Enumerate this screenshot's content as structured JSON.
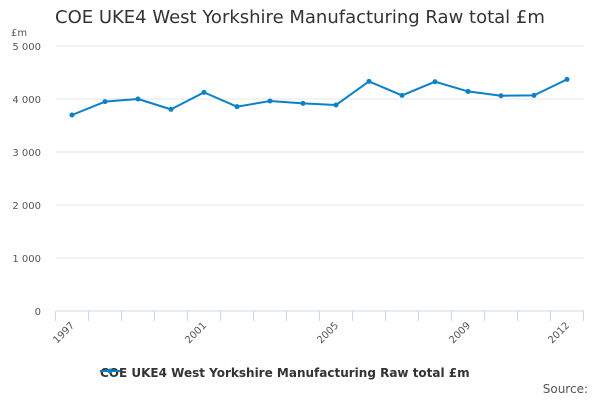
{
  "chart_data": {
    "type": "line",
    "title": "COE UKE4 West Yorkshire Manufacturing Raw total £m",
    "ylabel": "£m",
    "xlabel": "",
    "ylim": [
      0,
      5000
    ],
    "yticks": [
      0,
      1000,
      2000,
      3000,
      4000,
      5000
    ],
    "ytick_labels": [
      "0",
      "1 000",
      "2 000",
      "3 000",
      "4 000",
      "5 000"
    ],
    "xtick_labels": [
      "1997",
      "2001",
      "2005",
      "2009",
      "2012"
    ],
    "x": [
      1997,
      1998,
      1999,
      2000,
      2001,
      2002,
      2003,
      2004,
      2005,
      2006,
      2007,
      2008,
      2009,
      2010,
      2011,
      2012
    ],
    "series": [
      {
        "name": "COE UKE4 West Yorkshire Manufacturing Raw total £m",
        "color": "#0a80c8",
        "values": [
          3698,
          3950,
          4000,
          3804,
          4125,
          3855,
          3962,
          3918,
          3887,
          4332,
          4068,
          4326,
          4143,
          4062,
          4068,
          4370
        ]
      }
    ],
    "legend": "bottom",
    "grid": true
  },
  "source_label": "Source:"
}
